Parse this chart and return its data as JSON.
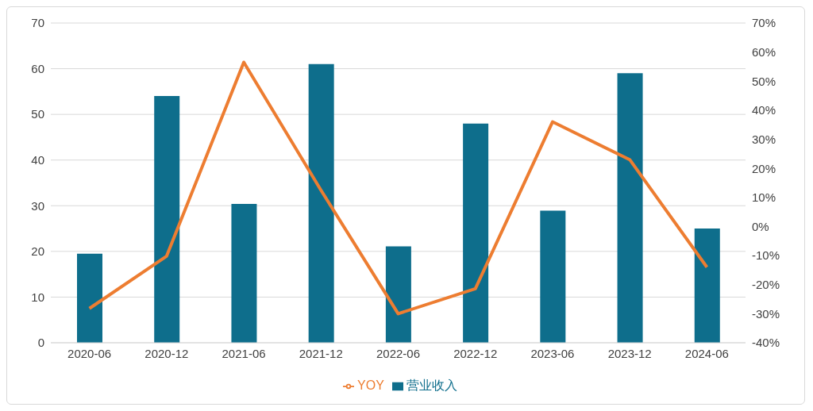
{
  "chart_data": {
    "type": "bar",
    "categories": [
      "2020-06",
      "2020-12",
      "2021-06",
      "2021-12",
      "2022-06",
      "2022-12",
      "2023-06",
      "2023-12",
      "2024-06"
    ],
    "series": [
      {
        "name": "营业收入",
        "color": "#0e6e8c",
        "values": [
          19.5,
          54,
          30.4,
          61,
          21.1,
          48,
          28.9,
          59,
          25
        ]
      },
      {
        "name": "YOY",
        "type": "line",
        "axis": "y2",
        "color": "#ed7d31",
        "values": [
          -28.2,
          -10.2,
          56.5,
          12.5,
          -30,
          -21.4,
          36,
          23,
          -14
        ]
      }
    ],
    "ylim": [
      0,
      70
    ],
    "yticks": [
      0,
      10,
      20,
      30,
      40,
      50,
      60,
      70
    ],
    "y2lim": [
      -40,
      70
    ],
    "y2ticks": [
      {
        "value": -40,
        "label": "-40%"
      },
      {
        "value": -30,
        "label": "-30%"
      },
      {
        "value": -20,
        "label": "-20%"
      },
      {
        "value": -10,
        "label": "-10%"
      },
      {
        "value": 0,
        "label": "0%"
      },
      {
        "value": 10,
        "label": "10%"
      },
      {
        "value": 20,
        "label": "20%"
      },
      {
        "value": 30,
        "label": "30%"
      },
      {
        "value": 40,
        "label": "40%"
      },
      {
        "value": 50,
        "label": "50%"
      },
      {
        "value": 60,
        "label": "60%"
      },
      {
        "value": 70,
        "label": "70%"
      }
    ],
    "grid": "y",
    "legend": "bottom",
    "marker": "none",
    "line_style": "solid"
  }
}
